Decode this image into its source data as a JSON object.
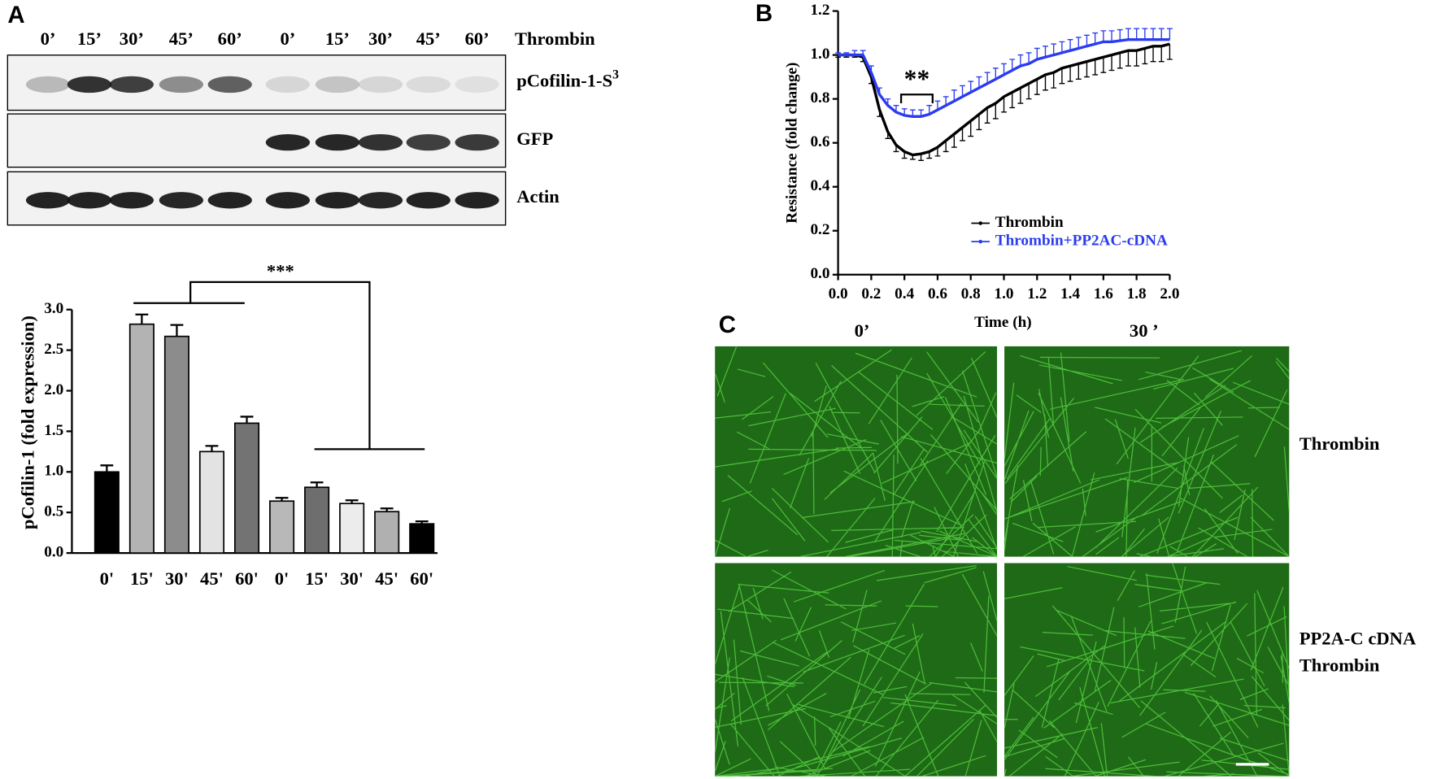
{
  "panels": {
    "a": "A",
    "b": "B",
    "c": "C"
  },
  "blot": {
    "lanes": [
      "0’",
      "15’",
      "30’",
      "45’",
      "60’",
      "0’",
      "15’",
      "30’",
      "45’",
      "60’"
    ],
    "treatment": "Thrombin",
    "rows": [
      {
        "label": "pCofilin-1-S",
        "sup": "3"
      },
      {
        "label": "GFP"
      },
      {
        "label": "Actin"
      }
    ]
  },
  "chart_data": [
    {
      "type": "bar",
      "ylabel": "pCofilin-1 (fold expression)",
      "categories": [
        "0'",
        "15'",
        "30'",
        "45'",
        "60'",
        "0'",
        "15'",
        "30'",
        "45'",
        "60'"
      ],
      "values": [
        1.0,
        2.82,
        2.67,
        1.25,
        1.6,
        0.64,
        0.81,
        0.61,
        0.51,
        0.36
      ],
      "errors": [
        0.08,
        0.12,
        0.14,
        0.07,
        0.08,
        0.04,
        0.06,
        0.04,
        0.04,
        0.03
      ],
      "colors": [
        "#000000",
        "#b3b3b3",
        "#8c8c8c",
        "#e3e3e3",
        "#737373",
        "#b8b8b8",
        "#6e6e6e",
        "#ececec",
        "#b0b0b0",
        "#000000"
      ],
      "ylim": [
        0,
        3
      ],
      "yticks": [
        {
          "value": 0,
          "label": "0.0"
        },
        0.5,
        {
          "value": 1,
          "label": "1.0"
        },
        1.5,
        {
          "value": 2,
          "label": "2.0"
        },
        2.5,
        {
          "value": 3,
          "label": "3.0"
        }
      ],
      "annotation": "***"
    },
    {
      "type": "line",
      "xlabel": "Time (h)",
      "ylabel": "Resistance (fold change)",
      "x": [
        0,
        0.05,
        0.1,
        0.15,
        0.2,
        0.25,
        0.3,
        0.35,
        0.4,
        0.45,
        0.5,
        0.55,
        0.6,
        0.65,
        0.7,
        0.75,
        0.8,
        0.85,
        0.9,
        0.95,
        1.0,
        1.05,
        1.1,
        1.15,
        1.2,
        1.25,
        1.3,
        1.35,
        1.4,
        1.45,
        1.5,
        1.55,
        1.6,
        1.65,
        1.7,
        1.75,
        1.8,
        1.85,
        1.9,
        1.95,
        2.0
      ],
      "series": [
        {
          "name": "Thrombin",
          "color": "#000000",
          "error_direction": "down",
          "values": [
            1.0,
            1.0,
            1.0,
            0.99,
            0.9,
            0.75,
            0.65,
            0.59,
            0.56,
            0.545,
            0.55,
            0.56,
            0.58,
            0.61,
            0.64,
            0.67,
            0.7,
            0.73,
            0.76,
            0.78,
            0.81,
            0.83,
            0.85,
            0.87,
            0.89,
            0.91,
            0.92,
            0.94,
            0.95,
            0.96,
            0.97,
            0.98,
            0.99,
            1.0,
            1.01,
            1.02,
            1.02,
            1.03,
            1.04,
            1.04,
            1.05
          ],
          "errors": [
            0.01,
            0.01,
            0.01,
            0.02,
            0.03,
            0.03,
            0.03,
            0.03,
            0.03,
            0.02,
            0.03,
            0.03,
            0.04,
            0.05,
            0.06,
            0.06,
            0.07,
            0.07,
            0.07,
            0.07,
            0.07,
            0.07,
            0.07,
            0.07,
            0.07,
            0.07,
            0.07,
            0.07,
            0.07,
            0.07,
            0.07,
            0.07,
            0.07,
            0.07,
            0.07,
            0.07,
            0.07,
            0.07,
            0.07,
            0.07,
            0.07
          ]
        },
        {
          "name": "Thrombin+PP2AC-cDNA",
          "color": "#2b3cf0",
          "error_direction": "up",
          "values": [
            1.0,
            1.0,
            1.0,
            1.0,
            0.92,
            0.82,
            0.77,
            0.74,
            0.725,
            0.72,
            0.72,
            0.73,
            0.75,
            0.77,
            0.79,
            0.81,
            0.83,
            0.85,
            0.87,
            0.89,
            0.91,
            0.93,
            0.95,
            0.96,
            0.98,
            0.99,
            1.0,
            1.01,
            1.02,
            1.03,
            1.04,
            1.05,
            1.06,
            1.06,
            1.065,
            1.07,
            1.07,
            1.07,
            1.07,
            1.07,
            1.07
          ],
          "errors": [
            0.01,
            0.01,
            0.02,
            0.02,
            0.03,
            0.03,
            0.03,
            0.03,
            0.03,
            0.03,
            0.03,
            0.04,
            0.04,
            0.04,
            0.05,
            0.05,
            0.05,
            0.05,
            0.05,
            0.05,
            0.05,
            0.05,
            0.05,
            0.05,
            0.05,
            0.05,
            0.05,
            0.05,
            0.05,
            0.05,
            0.05,
            0.05,
            0.05,
            0.05,
            0.05,
            0.05,
            0.05,
            0.05,
            0.05,
            0.05,
            0.05
          ]
        }
      ],
      "xlim": [
        0,
        2
      ],
      "xticks": [
        {
          "value": 0,
          "label": "0.0"
        },
        0.2,
        0.4,
        0.6,
        0.8,
        {
          "value": 1,
          "label": "1.0"
        },
        1.2,
        1.4,
        1.6,
        1.8,
        {
          "value": 2,
          "label": "2.0"
        }
      ],
      "ylim": [
        0,
        1.2
      ],
      "yticks": [
        {
          "value": 0,
          "label": "0.0"
        },
        0.2,
        0.4,
        0.6,
        0.8,
        {
          "value": 1,
          "label": "1.0"
        },
        1.2
      ],
      "legend": "lower right",
      "annotation": "**"
    }
  ],
  "micrograph": {
    "columns": [
      "0’",
      "30 ’"
    ],
    "rows": [
      [
        "Thrombin"
      ],
      [
        "PP2A-C cDNA",
        "Thrombin"
      ]
    ]
  }
}
